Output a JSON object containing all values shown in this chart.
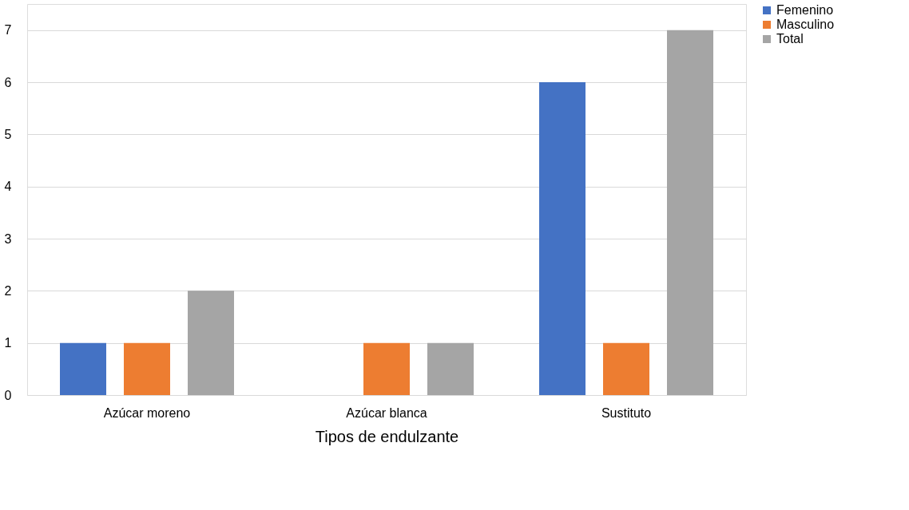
{
  "chart_data": {
    "type": "bar",
    "xlabel": "Tipos de endulzante",
    "categories": [
      "Azúcar moreno",
      "Azúcar blanca",
      "Sustituto"
    ],
    "series": [
      {
        "name": "Femenino",
        "color": "#4472c4",
        "values": [
          1,
          0,
          6
        ]
      },
      {
        "name": "Masculino",
        "color": "#ed7d31",
        "values": [
          1,
          1,
          1
        ]
      },
      {
        "name": "Total",
        "color": "#a5a5a5",
        "values": [
          2,
          1,
          7
        ]
      }
    ],
    "ylim": [
      0,
      7.5
    ],
    "yticks": [
      0,
      1,
      2,
      3,
      4,
      5,
      6,
      7
    ],
    "grid": "y",
    "legend": "right"
  }
}
